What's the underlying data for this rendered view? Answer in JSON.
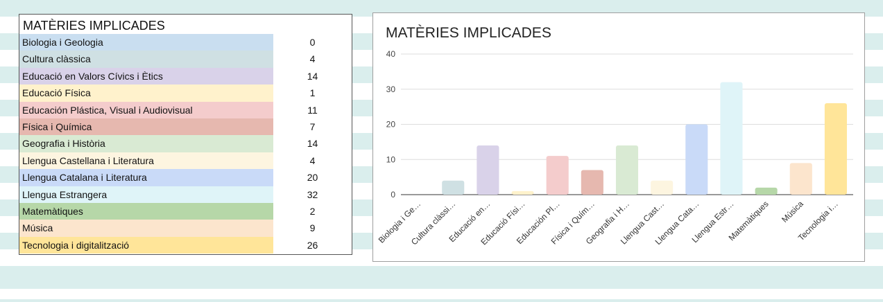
{
  "table": {
    "title": "MATÈRIES IMPLICADES",
    "rows": [
      {
        "name": "Biologia i Geologia",
        "value": "0",
        "color": "#c9def0"
      },
      {
        "name": "Cultura clàssica",
        "value": "4",
        "color": "#cfe0e3"
      },
      {
        "name": "Educació en Valors Cívics i Ètics",
        "value": "14",
        "color": "#d9d2e9"
      },
      {
        "name": "Educació Física",
        "value": "1",
        "color": "#fff2cc"
      },
      {
        "name": "Educación Plástica, Visual i Audiovisual",
        "value": "11",
        "color": "#f4cccc"
      },
      {
        "name": "Física i Química",
        "value": "7",
        "color": "#e6b8af"
      },
      {
        "name": "Geografia i Història",
        "value": "14",
        "color": "#d9ead3"
      },
      {
        "name": "Llengua Castellana i Literatura",
        "value": "4",
        "color": "#fdf5e0"
      },
      {
        "name": "Llengua Catalana i Literatura",
        "value": "20",
        "color": "#c9daf8"
      },
      {
        "name": "Llengua Estrangera",
        "value": "32",
        "color": "#dff4f8"
      },
      {
        "name": "Matemàtiques",
        "value": "2",
        "color": "#b6d7a8"
      },
      {
        "name": "Música",
        "value": "9",
        "color": "#fce5cd"
      },
      {
        "name": "Tecnologia i digitalització",
        "value": "26",
        "color": "#ffe599"
      }
    ]
  },
  "chart_data": {
    "type": "bar",
    "title": "MATÈRIES IMPLICADES",
    "categories": [
      "Biologia i Ge…",
      "Cultura clàssi…",
      "Educació en…",
      "Educació Físi…",
      "Educación Pl…",
      "Física i Quím…",
      "Geografia i H…",
      "Llengua Cast…",
      "Llengua Cata…",
      "Llengua Estr…",
      "Matemàtiques",
      "Música",
      "Tecnologia i…"
    ],
    "values": [
      0,
      4,
      14,
      1,
      11,
      7,
      14,
      4,
      20,
      32,
      2,
      9,
      26
    ],
    "colors": [
      "#c9def0",
      "#cfe0e3",
      "#d9d2e9",
      "#fff2cc",
      "#f4cccc",
      "#e6b8af",
      "#d9ead3",
      "#fdf5e0",
      "#c9daf8",
      "#dff4f8",
      "#b6d7a8",
      "#fce5cd",
      "#ffe599"
    ],
    "ylim": [
      0,
      40
    ],
    "yticks": [
      0,
      10,
      20,
      30,
      40
    ],
    "grid": true,
    "xlabel": "",
    "ylabel": ""
  }
}
